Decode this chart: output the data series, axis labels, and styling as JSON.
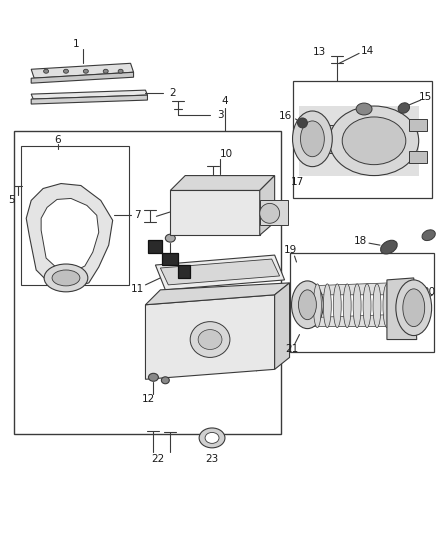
{
  "bg_color": "#ffffff",
  "line_color": "#3a3a3a",
  "text_color": "#1a1a1a",
  "fig_width": 4.38,
  "fig_height": 5.33,
  "dpi": 100
}
